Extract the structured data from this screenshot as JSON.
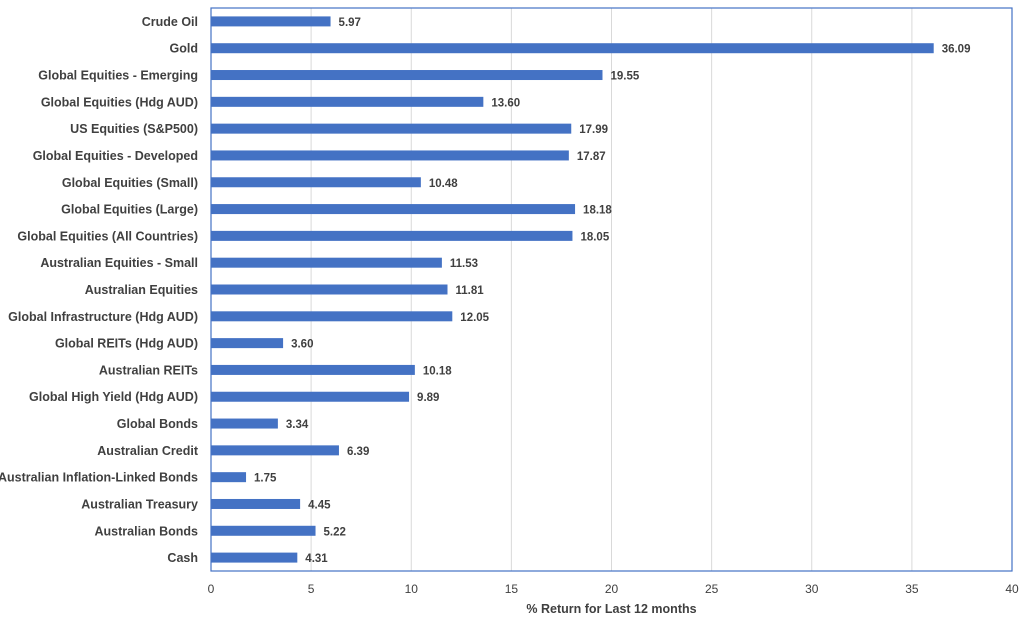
{
  "chart_data": {
    "type": "bar",
    "orientation": "horizontal",
    "categories": [
      "Crude Oil",
      "Gold",
      "Global Equities - Emerging",
      "Global Equities (Hdg AUD)",
      "US Equities (S&P500)",
      "Global Equities - Developed",
      "Global Equities (Small)",
      "Global Equities (Large)",
      "Global Equities (All Countries)",
      "Australian Equities - Small",
      "Australian Equities",
      "Global Infrastructure (Hdg AUD)",
      "Global REITs (Hdg AUD)",
      "Australian REITs",
      "Global High Yield (Hdg AUD)",
      "Global Bonds",
      "Australian Credit",
      "Australian Inflation-Linked Bonds",
      "Australian Treasury",
      "Australian Bonds",
      "Cash"
    ],
    "values": [
      5.97,
      36.09,
      19.55,
      13.6,
      17.99,
      17.87,
      10.48,
      18.18,
      18.05,
      11.53,
      11.81,
      12.05,
      3.6,
      10.18,
      9.89,
      3.34,
      6.39,
      1.75,
      4.45,
      5.22,
      4.31
    ],
    "value_labels": [
      "5.97",
      "36.09",
      "19.55",
      "13.60",
      "17.99",
      "17.87",
      "10.48",
      "18.18",
      "18.05",
      "11.53",
      "11.81",
      "12.05",
      "3.60",
      "10.18",
      "9.89",
      "3.34",
      "6.39",
      "1.75",
      "4.45",
      "5.22",
      "4.31"
    ],
    "title": "",
    "xlabel": "% Return for Last 12 months",
    "ylabel": "",
    "xlim": [
      0,
      40
    ],
    "xticks": [
      0,
      5,
      10,
      15,
      20,
      25,
      30,
      35,
      40
    ],
    "grid": "vertical",
    "legend": "none",
    "colors": {
      "bar": "#4472C4",
      "grid": "#D9D9D9",
      "frame": "#4472C4",
      "text": "#404040"
    }
  }
}
